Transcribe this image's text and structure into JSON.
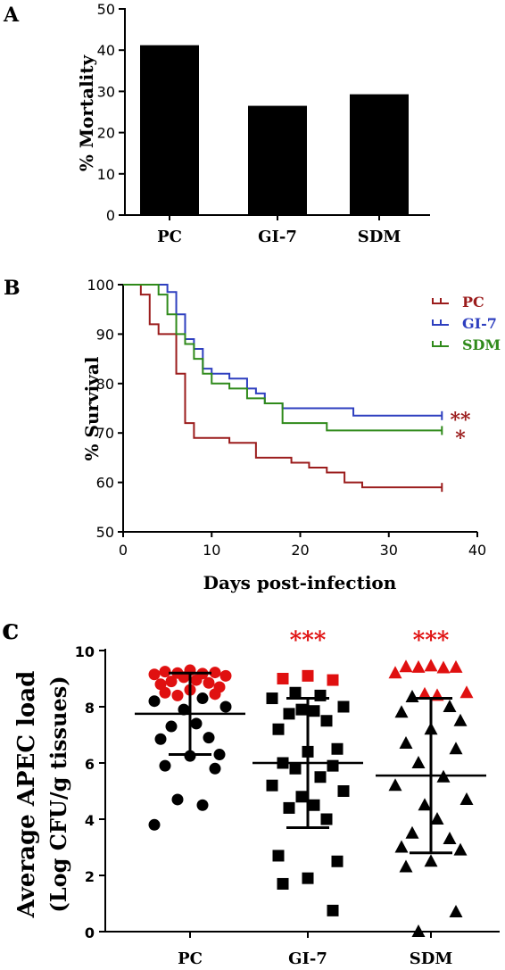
{
  "panel_labels": {
    "a": "A",
    "b": "B",
    "c": "c"
  },
  "chart_data": [
    {
      "type": "bar",
      "panel": "A",
      "categories": [
        "PC",
        "GI-7",
        "SDM"
      ],
      "values": [
        41.2,
        26.5,
        29.3
      ],
      "ylabel": "% Mortality",
      "ylim": [
        0,
        50
      ],
      "yticks": [
        "0",
        "10",
        "20",
        "30",
        "40",
        "50"
      ],
      "bar_color": "#000000"
    },
    {
      "type": "line",
      "panel": "B",
      "xlabel": "Days post-infection",
      "ylabel": "% Survival",
      "xlim": [
        0,
        40
      ],
      "ylim": [
        50,
        100
      ],
      "xticks": [
        "0",
        "10",
        "20",
        "30",
        "40"
      ],
      "yticks": [
        "50",
        "60",
        "70",
        "80",
        "90",
        "100"
      ],
      "legend_position": "top-right",
      "series": [
        {
          "name": "PC",
          "color": "#9b1c1c",
          "x": [
            0,
            2,
            3,
            4,
            5,
            6,
            7,
            8,
            10,
            12,
            15,
            19,
            21,
            23,
            25,
            27,
            36
          ],
          "y": [
            100,
            98,
            92,
            90,
            90,
            82,
            72,
            69,
            69,
            68,
            65,
            64,
            63,
            62,
            60,
            59,
            59
          ]
        },
        {
          "name": "GI-7",
          "color": "#2e3fbf",
          "x": [
            0,
            2,
            3,
            4,
            5,
            6,
            7,
            8,
            9,
            10,
            12,
            14,
            15,
            16,
            18,
            26,
            36
          ],
          "y": [
            100,
            100,
            100,
            100,
            98.5,
            94,
            89,
            87,
            83,
            82,
            81,
            79,
            78,
            76,
            75,
            73.5,
            73.5
          ]
        },
        {
          "name": "SDM",
          "color": "#2f8a1a",
          "x": [
            0,
            2,
            3,
            4,
            5,
            6,
            7,
            8,
            9,
            10,
            12,
            14,
            16,
            18,
            23,
            36
          ],
          "y": [
            100,
            100,
            100,
            98,
            94,
            90,
            88,
            85,
            82,
            80,
            79,
            77,
            76,
            72,
            70.5,
            70.5
          ]
        }
      ],
      "annotations": [
        {
          "text": "**",
          "y": 73.5,
          "color": "#9b1c1c"
        },
        {
          "text": "*",
          "y": 70.5,
          "color": "#9b1c1c"
        }
      ]
    },
    {
      "type": "scatter",
      "panel": "C",
      "ylabel_line1": "Average APEC load",
      "ylabel_line2": "(Log CFU/g tissues)",
      "ylim": [
        0,
        10
      ],
      "yticks": [
        "0",
        "2",
        "4",
        "6",
        "8",
        "10"
      ],
      "categories": [
        "PC",
        "GI-7",
        "SDM"
      ],
      "highlight_color": "#e01010",
      "base_color": "#000000",
      "groups": [
        {
          "name": "PC",
          "marker": "circle",
          "mean": 7.75,
          "sd_low": 6.3,
          "sd_high": 9.2,
          "significance": "",
          "points": [
            9.3,
            9.25,
            9.22,
            9.2,
            9.18,
            9.15,
            9.1,
            9.05,
            8.95,
            8.9,
            8.85,
            8.8,
            8.7,
            8.6,
            8.5,
            8.45,
            8.4,
            8.3,
            8.2,
            8.0,
            7.9,
            7.4,
            7.3,
            6.9,
            6.85,
            6.3,
            6.25,
            5.9,
            5.8,
            4.7,
            4.5,
            3.8
          ],
          "red_above": 8.4
        },
        {
          "name": "GI-7",
          "marker": "square",
          "mean": 6.0,
          "sd_low": 3.7,
          "sd_high": 8.3,
          "significance": "***",
          "points": [
            9.1,
            9.0,
            8.95,
            8.5,
            8.4,
            8.3,
            8.0,
            7.9,
            7.85,
            7.75,
            7.5,
            7.2,
            6.5,
            6.4,
            6.0,
            5.9,
            5.8,
            5.5,
            5.2,
            5.0,
            4.8,
            4.5,
            4.4,
            4.0,
            2.7,
            2.5,
            1.9,
            1.7,
            0.75
          ],
          "red_above": 8.6
        },
        {
          "name": "SDM",
          "marker": "triangle",
          "mean": 5.55,
          "sd_low": 2.8,
          "sd_high": 8.3,
          "significance": "***",
          "points": [
            9.45,
            9.42,
            9.4,
            9.4,
            9.38,
            9.2,
            8.5,
            8.45,
            8.4,
            8.35,
            8.0,
            7.8,
            7.5,
            7.2,
            6.7,
            6.5,
            6.0,
            5.5,
            5.2,
            4.7,
            4.5,
            4.0,
            3.5,
            3.3,
            3.0,
            2.9,
            2.5,
            2.3,
            0.7,
            0.0
          ],
          "red_above": 8.4
        }
      ]
    }
  ]
}
